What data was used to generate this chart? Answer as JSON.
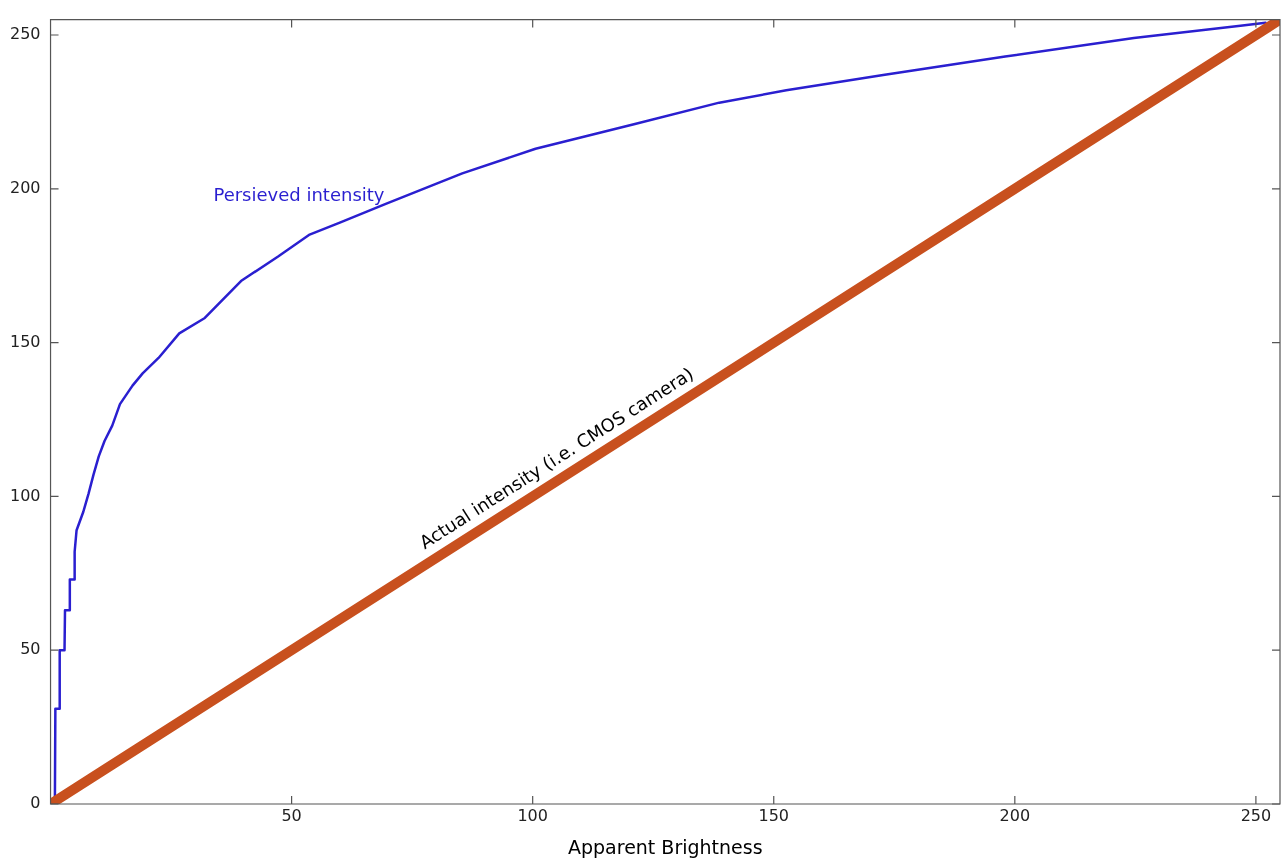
{
  "chart_data": {
    "type": "line",
    "xlabel": "Apparent Brightness",
    "xlim": [
      0,
      255
    ],
    "ylim": [
      0,
      255
    ],
    "xticks": [
      50,
      100,
      150,
      200,
      250
    ],
    "yticks": [
      0,
      50,
      100,
      150,
      200,
      250
    ],
    "grid": false,
    "legend": false,
    "marker": "none",
    "line_style": "solid",
    "series": [
      {
        "name": "Persieved intensity",
        "color": "#2a1fd0",
        "x": [
          0,
          0.9,
          1,
          1.8,
          1.9,
          2.9,
          3,
          3.9,
          4,
          4.9,
          5,
          5.4,
          6.8,
          7.9,
          8.9,
          10,
          11.2,
          12.8,
          14.4,
          17,
          19.1,
          22.4,
          26.7,
          32,
          39.5,
          47.2,
          53.6,
          60,
          69.4,
          85.4,
          100.6,
          121,
          138.7,
          152.6,
          172.7,
          198,
          224.7,
          246.8,
          252
        ],
        "values": [
          0,
          0,
          31,
          31,
          50,
          50,
          63,
          63,
          73,
          73,
          82,
          89,
          95,
          101,
          107,
          113,
          118,
          123,
          130,
          136,
          140,
          145,
          153,
          158,
          170,
          178,
          185,
          189,
          195,
          205,
          213,
          221,
          228,
          232,
          237,
          243,
          249,
          253,
          254
        ]
      },
      {
        "name": "Actual intensity (i.e. CMOS camera)",
        "color": "#c8501e",
        "x": [
          0,
          255
        ],
        "values": [
          0,
          255
        ]
      }
    ]
  }
}
